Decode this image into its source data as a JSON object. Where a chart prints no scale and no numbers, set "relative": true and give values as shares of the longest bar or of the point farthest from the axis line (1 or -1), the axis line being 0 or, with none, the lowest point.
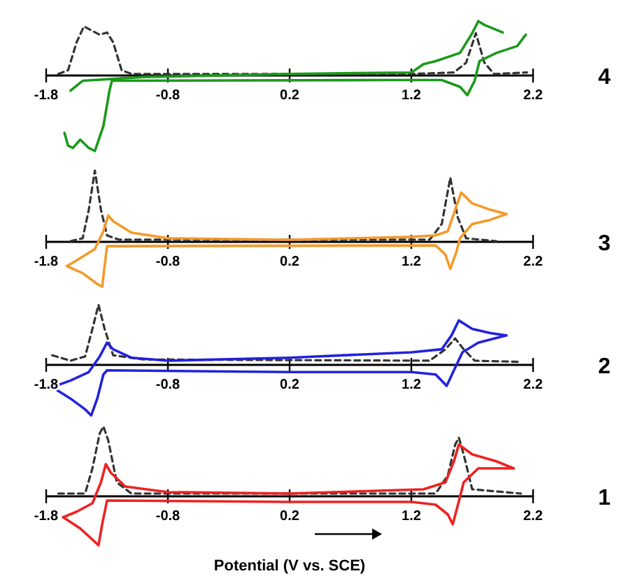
{
  "chart_data": [
    {
      "type": "line",
      "annotations": [
        "4"
      ],
      "relative": true,
      "tick_labels": "x",
      "xlim": [
        -1.8,
        2.2
      ],
      "xticks": [
        -1.8,
        -0.8,
        0.2,
        1.2,
        2.2
      ],
      "series": [
        {
          "color": "#333333",
          "line_style": "dashed",
          "x": [
            -1.7,
            -1.62,
            -1.55,
            -1.49,
            -1.42,
            -1.36,
            -1.3,
            -1.25,
            -1.18,
            -1.1,
            1.2,
            1.55,
            1.65,
            1.73,
            1.8,
            1.88,
            2.15
          ],
          "values": [
            0.02,
            0.07,
            0.44,
            0.65,
            0.59,
            0.54,
            0.57,
            0.44,
            0.07,
            0.02,
            0.02,
            0.04,
            0.17,
            0.56,
            0.17,
            0.02,
            0.04
          ]
        },
        {
          "color": "#1a9a1a",
          "line_style": "solid",
          "x": [
            -1.65,
            -1.62,
            -1.58,
            -1.52,
            -1.45,
            -1.4,
            -1.33,
            -1.28,
            -1.26,
            1.0,
            1.45,
            1.6,
            1.66,
            1.72,
            1.76,
            1.9,
            2.07,
            2.14
          ],
          "values": [
            -0.76,
            -0.93,
            -0.96,
            -0.85,
            -0.96,
            -1,
            -0.67,
            -0.2,
            -0.07,
            -0.06,
            -0.06,
            -0.15,
            -0.26,
            -0.07,
            0.19,
            0.3,
            0.39,
            0.54
          ]
        },
        {
          "color": "#1a9a1a",
          "line_style": "solid",
          "x": [
            -1.6,
            -1.5,
            -1.0,
            0.2,
            1.2,
            1.3,
            1.4,
            1.6,
            1.7,
            1.75,
            1.8,
            1.95
          ],
          "values": [
            -0.2,
            -0.07,
            -0.02,
            0.02,
            0.04,
            0.15,
            0.19,
            0.3,
            0.56,
            0.72,
            0.67,
            0.57
          ]
        }
      ]
    },
    {
      "type": "line",
      "annotations": [
        "3"
      ],
      "relative": true,
      "tick_labels": "x",
      "xlim": [
        -1.8,
        2.2
      ],
      "xticks": [
        -1.8,
        -0.8,
        0.2,
        1.2,
        2.2
      ],
      "series": [
        {
          "color": "#333333",
          "line_style": "dashed",
          "x": [
            -1.6,
            -1.5,
            -1.45,
            -1.4,
            -1.35,
            -1.3,
            -1.2,
            1.35,
            1.45,
            1.52,
            1.58,
            1.65,
            1.9
          ],
          "values": [
            0.01,
            0.05,
            0.45,
            1.0,
            0.45,
            0.09,
            0.03,
            0.03,
            0.25,
            0.9,
            0.35,
            0.05,
            0.01
          ]
        },
        {
          "color": "#f39a2a",
          "line_style": "solid",
          "x": [
            -1.63,
            -1.5,
            -1.38,
            -1.34,
            -1.32,
            -1.3,
            1.4,
            1.48,
            1.52,
            1.57,
            1.6,
            1.7,
            1.85,
            1.98
          ],
          "values": [
            -0.34,
            -0.44,
            -0.59,
            -0.63,
            -0.34,
            -0.06,
            -0.05,
            -0.18,
            -0.38,
            -0.14,
            0.05,
            0.25,
            0.31,
            0.39
          ]
        },
        {
          "color": "#f39a2a",
          "line_style": "solid",
          "x": [
            -1.63,
            -1.55,
            -1.4,
            -1.33,
            -1.29,
            -1.25,
            -1.1,
            -0.8,
            0.2,
            1.2,
            1.4,
            1.5,
            1.56,
            1.61,
            1.7,
            1.85,
            1.98
          ],
          "values": [
            -0.34,
            -0.26,
            -0.1,
            0.15,
            0.37,
            0.29,
            0.13,
            0.05,
            0.03,
            0.07,
            0.09,
            0.15,
            0.45,
            0.69,
            0.54,
            0.45,
            0.39
          ]
        }
      ]
    },
    {
      "type": "line",
      "annotations": [
        "2"
      ],
      "relative": true,
      "tick_labels": "x",
      "xlim": [
        -1.8,
        2.2
      ],
      "xticks": [
        -1.8,
        -0.8,
        0.2,
        1.2,
        2.2
      ],
      "series": [
        {
          "color": "#333333",
          "line_style": "dashed",
          "x": [
            -1.75,
            -1.6,
            -1.48,
            -1.42,
            -1.37,
            -1.32,
            -1.25,
            -1.0,
            1.35,
            1.48,
            1.56,
            1.63,
            1.72,
            2.1
          ],
          "values": [
            0.16,
            0.07,
            0.14,
            0.6,
            1.0,
            0.6,
            0.16,
            0.09,
            0.07,
            0.26,
            0.44,
            0.26,
            0.07,
            0.05
          ]
        },
        {
          "color": "#2222dd",
          "line_style": "solid",
          "x": [
            -1.75,
            -1.6,
            -1.48,
            -1.43,
            -1.38,
            -1.33,
            -1.3,
            0.2,
            1.2,
            1.4,
            1.49,
            1.55,
            1.62,
            1.75,
            1.98
          ],
          "values": [
            -0.37,
            -0.56,
            -0.74,
            -0.84,
            -0.56,
            -0.16,
            -0.09,
            -0.12,
            -0.12,
            -0.16,
            -0.35,
            -0.09,
            0.21,
            0.37,
            0.49
          ]
        },
        {
          "color": "#2222dd",
          "line_style": "solid",
          "x": [
            -1.75,
            -1.6,
            -1.45,
            -1.36,
            -1.3,
            -1.25,
            -1.1,
            -0.8,
            0.2,
            1.2,
            1.45,
            1.53,
            1.59,
            1.7,
            1.85,
            1.98
          ],
          "values": [
            -0.37,
            -0.26,
            -0.12,
            0.14,
            0.37,
            0.26,
            0.12,
            0.07,
            0.12,
            0.21,
            0.26,
            0.49,
            0.74,
            0.6,
            0.53,
            0.49
          ]
        }
      ]
    },
    {
      "type": "line",
      "annotations": [
        "1"
      ],
      "xlabel": "Potential (V vs. SCE)",
      "relative": true,
      "tick_labels": "x",
      "xlim": [
        -1.8,
        2.2
      ],
      "xticks": [
        -1.8,
        -0.8,
        0.2,
        1.2,
        2.2
      ],
      "series": [
        {
          "color": "#333333",
          "line_style": "dashed",
          "x": [
            -1.7,
            -1.48,
            -1.42,
            -1.36,
            -1.33,
            -1.29,
            -1.22,
            -1.1,
            1.4,
            1.5,
            1.56,
            1.59,
            1.63,
            1.7,
            2.1
          ],
          "values": [
            0.04,
            0.04,
            0.4,
            0.9,
            1.0,
            0.8,
            0.2,
            0.04,
            0.04,
            0.3,
            0.74,
            0.84,
            0.6,
            0.1,
            0.04
          ]
        },
        {
          "color": "#ee2222",
          "line_style": "solid",
          "x": [
            -1.66,
            -1.52,
            -1.42,
            -1.37,
            -1.34,
            -1.3,
            0.2,
            1.2,
            1.4,
            1.5,
            1.54,
            1.58,
            1.63,
            1.75,
            2.04
          ],
          "values": [
            -0.3,
            -0.46,
            -0.62,
            -0.7,
            -0.4,
            -0.06,
            -0.08,
            -0.08,
            -0.12,
            -0.26,
            -0.4,
            -0.14,
            0.2,
            0.4,
            0.4
          ]
        },
        {
          "color": "#ee2222",
          "line_style": "solid",
          "x": [
            -1.66,
            -1.55,
            -1.42,
            -1.35,
            -1.31,
            -1.27,
            -1.15,
            -0.8,
            0.2,
            1.3,
            1.48,
            1.55,
            1.59,
            1.7,
            1.9,
            2.04
          ],
          "values": [
            -0.3,
            -0.22,
            -0.1,
            0.2,
            0.46,
            0.34,
            0.14,
            0.06,
            0.04,
            0.1,
            0.2,
            0.5,
            0.74,
            0.6,
            0.5,
            0.4
          ]
        }
      ]
    }
  ]
}
